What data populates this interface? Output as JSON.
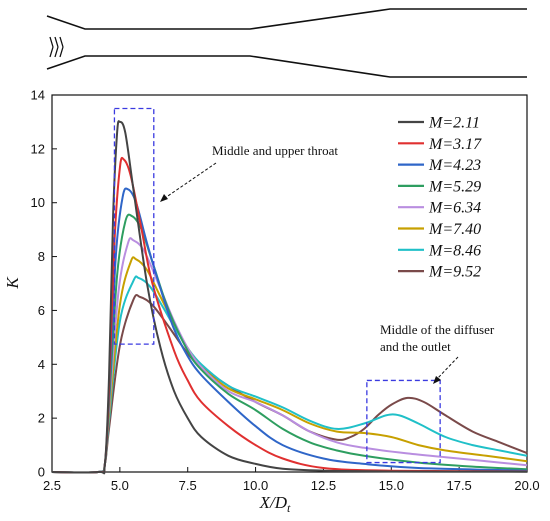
{
  "chart_data": {
    "type": "line",
    "title": "",
    "xlabel": "X/D",
    "xlabel_sub": "t",
    "ylabel": "K",
    "xlim": [
      2.5,
      20.0
    ],
    "ylim": [
      0,
      14
    ],
    "xticks": [
      "2.5",
      "5.0",
      "7.5",
      "10.0",
      "12.5",
      "15.0",
      "17.5",
      "20.0"
    ],
    "xtick_values": [
      2.5,
      5.0,
      7.5,
      10.0,
      12.5,
      15.0,
      17.5,
      20.0
    ],
    "yticks": [
      "0",
      "2",
      "4",
      "6",
      "8",
      "10",
      "12",
      "14"
    ],
    "ytick_values": [
      0,
      2,
      4,
      6,
      8,
      10,
      12,
      14
    ],
    "grid": false,
    "legend_position": "top-right",
    "series": [
      {
        "name": "M=2.11",
        "color": "#444444",
        "points": [
          [
            2.5,
            0
          ],
          [
            4.2,
            0
          ],
          [
            4.45,
            0.3
          ],
          [
            4.6,
            3.5
          ],
          [
            4.75,
            9.5
          ],
          [
            4.9,
            12.6
          ],
          [
            5.0,
            13.0
          ],
          [
            5.2,
            12.6
          ],
          [
            5.5,
            10.5
          ],
          [
            6.0,
            7.0
          ],
          [
            6.5,
            4.6
          ],
          [
            7.0,
            3.0
          ],
          [
            7.5,
            2.0
          ],
          [
            8.0,
            1.3
          ],
          [
            9.0,
            0.6
          ],
          [
            10.0,
            0.3
          ],
          [
            11.0,
            0.12
          ],
          [
            12.5,
            0.05
          ],
          [
            15.0,
            0.02
          ],
          [
            20.0,
            0.01
          ]
        ]
      },
      {
        "name": "M=3.17",
        "color": "#e03030",
        "points": [
          [
            2.5,
            0
          ],
          [
            4.2,
            0
          ],
          [
            4.45,
            0.3
          ],
          [
            4.6,
            3.0
          ],
          [
            4.8,
            8.5
          ],
          [
            5.0,
            11.3
          ],
          [
            5.15,
            11.6
          ],
          [
            5.4,
            11.0
          ],
          [
            5.8,
            9.0
          ],
          [
            6.2,
            7.0
          ],
          [
            7.0,
            4.5
          ],
          [
            7.5,
            3.4
          ],
          [
            8.0,
            2.6
          ],
          [
            9.0,
            1.7
          ],
          [
            10.0,
            1.0
          ],
          [
            11.0,
            0.5
          ],
          [
            12.5,
            0.15
          ],
          [
            15.0,
            0.05
          ],
          [
            20.0,
            0.02
          ]
        ]
      },
      {
        "name": "M=4.23",
        "color": "#2f66c8",
        "points": [
          [
            2.5,
            0
          ],
          [
            4.2,
            0
          ],
          [
            4.45,
            0.3
          ],
          [
            4.6,
            2.8
          ],
          [
            4.85,
            8.0
          ],
          [
            5.1,
            10.2
          ],
          [
            5.3,
            10.5
          ],
          [
            5.6,
            10.0
          ],
          [
            6.0,
            8.5
          ],
          [
            6.5,
            6.8
          ],
          [
            7.0,
            5.3
          ],
          [
            7.5,
            4.3
          ],
          [
            8.0,
            3.6
          ],
          [
            9.0,
            2.6
          ],
          [
            10.0,
            1.7
          ],
          [
            11.0,
            1.0
          ],
          [
            12.5,
            0.5
          ],
          [
            14.0,
            0.3
          ],
          [
            16.0,
            0.15
          ],
          [
            20.0,
            0.05
          ]
        ]
      },
      {
        "name": "M=5.29",
        "color": "#2e9e60",
        "points": [
          [
            2.5,
            0
          ],
          [
            4.2,
            0
          ],
          [
            4.45,
            0.3
          ],
          [
            4.6,
            2.5
          ],
          [
            4.9,
            7.3
          ],
          [
            5.2,
            9.3
          ],
          [
            5.45,
            9.5
          ],
          [
            5.8,
            9.0
          ],
          [
            6.2,
            7.8
          ],
          [
            6.8,
            6.0
          ],
          [
            7.5,
            4.5
          ],
          [
            8.0,
            3.8
          ],
          [
            9.0,
            2.9
          ],
          [
            10.0,
            2.3
          ],
          [
            11.0,
            1.6
          ],
          [
            12.0,
            1.1
          ],
          [
            13.0,
            0.8
          ],
          [
            14.0,
            0.6
          ],
          [
            16.0,
            0.35
          ],
          [
            18.0,
            0.2
          ],
          [
            20.0,
            0.1
          ]
        ]
      },
      {
        "name": "M=6.34",
        "color": "#b98ee0",
        "points": [
          [
            2.5,
            0
          ],
          [
            4.2,
            0
          ],
          [
            4.45,
            0.3
          ],
          [
            4.6,
            2.3
          ],
          [
            4.95,
            6.7
          ],
          [
            5.3,
            8.5
          ],
          [
            5.5,
            8.6
          ],
          [
            5.9,
            8.2
          ],
          [
            6.5,
            6.8
          ],
          [
            7.0,
            5.6
          ],
          [
            7.5,
            4.6
          ],
          [
            8.0,
            3.9
          ],
          [
            9.0,
            3.0
          ],
          [
            10.0,
            2.6
          ],
          [
            11.0,
            2.1
          ],
          [
            12.0,
            1.5
          ],
          [
            13.0,
            1.1
          ],
          [
            14.0,
            0.9
          ],
          [
            15.5,
            0.7
          ],
          [
            17.0,
            0.55
          ],
          [
            18.5,
            0.4
          ],
          [
            20.0,
            0.25
          ]
        ]
      },
      {
        "name": "M=7.40",
        "color": "#c7a000",
        "points": [
          [
            2.5,
            0
          ],
          [
            4.2,
            0
          ],
          [
            4.45,
            0.3
          ],
          [
            4.6,
            2.1
          ],
          [
            5.0,
            6.2
          ],
          [
            5.4,
            7.8
          ],
          [
            5.6,
            7.9
          ],
          [
            6.0,
            7.5
          ],
          [
            6.5,
            6.5
          ],
          [
            7.0,
            5.5
          ],
          [
            7.5,
            4.6
          ],
          [
            8.0,
            3.9
          ],
          [
            9.0,
            3.1
          ],
          [
            10.0,
            2.7
          ],
          [
            11.0,
            2.3
          ],
          [
            12.0,
            1.8
          ],
          [
            13.0,
            1.5
          ],
          [
            14.0,
            1.45
          ],
          [
            15.0,
            1.3
          ],
          [
            16.0,
            1.0
          ],
          [
            17.0,
            0.8
          ],
          [
            18.5,
            0.6
          ],
          [
            20.0,
            0.4
          ]
        ]
      },
      {
        "name": "M=8.46",
        "color": "#20c0c8",
        "points": [
          [
            2.5,
            0
          ],
          [
            4.2,
            0
          ],
          [
            4.45,
            0.3
          ],
          [
            4.6,
            1.9
          ],
          [
            5.0,
            5.6
          ],
          [
            5.5,
            7.1
          ],
          [
            5.7,
            7.2
          ],
          [
            6.1,
            6.9
          ],
          [
            6.6,
            6.1
          ],
          [
            7.0,
            5.4
          ],
          [
            7.5,
            4.6
          ],
          [
            8.0,
            4.0
          ],
          [
            9.0,
            3.2
          ],
          [
            10.0,
            2.8
          ],
          [
            11.0,
            2.4
          ],
          [
            12.0,
            1.9
          ],
          [
            13.0,
            1.6
          ],
          [
            14.0,
            1.8
          ],
          [
            14.8,
            2.1
          ],
          [
            15.3,
            2.1
          ],
          [
            16.0,
            1.8
          ],
          [
            17.0,
            1.3
          ],
          [
            18.0,
            1.0
          ],
          [
            19.0,
            0.8
          ],
          [
            20.0,
            0.6
          ]
        ]
      },
      {
        "name": "M=9.52",
        "color": "#7a4a4a",
        "points": [
          [
            2.5,
            0
          ],
          [
            4.2,
            0
          ],
          [
            4.45,
            0.3
          ],
          [
            4.6,
            1.6
          ],
          [
            5.0,
            4.7
          ],
          [
            5.5,
            6.4
          ],
          [
            5.75,
            6.5
          ],
          [
            6.2,
            6.2
          ],
          [
            6.8,
            5.4
          ],
          [
            7.5,
            4.4
          ],
          [
            8.0,
            3.9
          ],
          [
            9.0,
            3.2
          ],
          [
            10.0,
            2.6
          ],
          [
            11.0,
            2.1
          ],
          [
            12.0,
            1.5
          ],
          [
            13.0,
            1.2
          ],
          [
            13.5,
            1.3
          ],
          [
            14.0,
            1.6
          ],
          [
            14.5,
            2.1
          ],
          [
            15.0,
            2.5
          ],
          [
            15.6,
            2.75
          ],
          [
            16.2,
            2.6
          ],
          [
            17.0,
            2.1
          ],
          [
            18.0,
            1.5
          ],
          [
            19.0,
            1.1
          ],
          [
            20.0,
            0.7
          ]
        ]
      }
    ],
    "annotations": [
      {
        "id": "throat",
        "lines": [
          "Middle and upper throat"
        ],
        "box": {
          "x": [
            4.8,
            6.25
          ],
          "y": [
            4.75,
            13.5
          ]
        }
      },
      {
        "id": "diffuser",
        "lines": [
          "Middle of the diffuser",
          "and the outlet"
        ],
        "box": {
          "x": [
            14.1,
            16.8
          ],
          "y": [
            0.35,
            3.4
          ]
        }
      }
    ]
  }
}
